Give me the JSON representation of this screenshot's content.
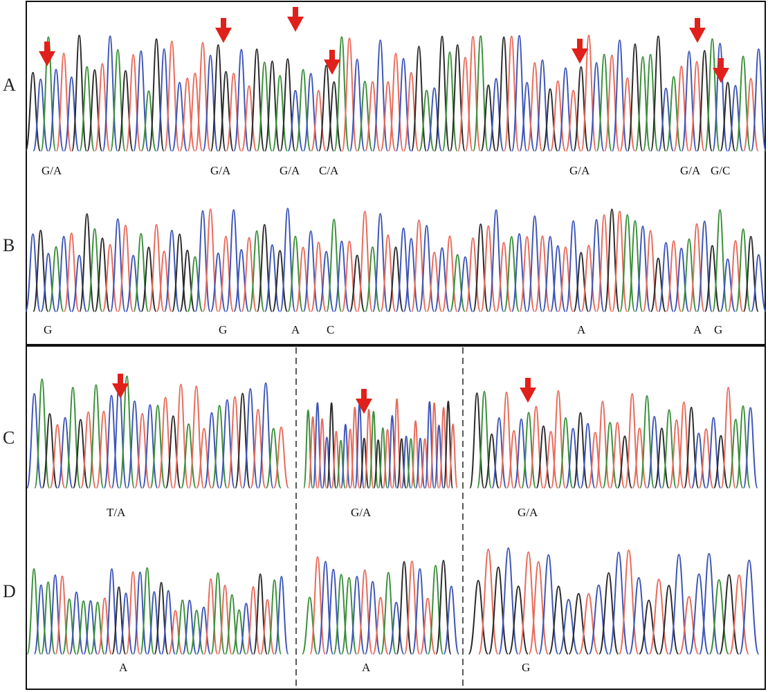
{
  "panels": [
    {
      "id": "A",
      "letter": "A"
    },
    {
      "id": "B",
      "letter": "B"
    },
    {
      "id": "C",
      "letter": "C"
    },
    {
      "id": "D",
      "letter": "D"
    }
  ],
  "colors": {
    "A": "#3a8f3a",
    "C": "#3d55b8",
    "G": "#2a2a2a",
    "T": "#e86a5a",
    "arrow": "#e0201a",
    "frame": "#111111"
  },
  "traces": {
    "A": "GCACTCGAGTCAGTCAGCTCTTTCGGTCTGAGAGCACTGGATCATCTTCTGACGAGTTAGCGTCCTCGTCTGTCATCTGAAGCATCTGACGCATC",
    "B": "CGCACTCGAGTCTCAGTTCGGACTCTCCTAGCGCATCTCACTGTACTGCCTCTCTACTGTCTACTCTCCTCGTCTGTAACTGCTCATCGACTAGC",
    "C1": "CAGTCAGTATCCACTCATGTATTCACTGCTCAT",
    "C2": "ATCTCGTACTTCGTAGATCTGCATCTCTCTGT",
    "C3": "GAGCTTCATGTTACGCTTATGTTACGATTGCTCGTAAC",
    "D1": "ACACTACACATCGCTCACGCTACACTATAACTGTAC",
    "D2": "ATCCAACTCTACGTCTAGC",
    "D3": "GTGCGTTCGCGTCGCTCGTGCTCCAGTC"
  },
  "panel_A_calls": [
    "G/A",
    "G/A",
    "G/A",
    "C/A",
    "G/A",
    "G/A",
    "G/C"
  ],
  "panel_B_calls": [
    "G",
    "G",
    "A",
    "C",
    "A",
    "A",
    "G"
  ],
  "panel_C_calls": [
    "T/A",
    "G/A",
    "G/A"
  ],
  "panel_D_calls": [
    "A",
    "A",
    "G"
  ]
}
